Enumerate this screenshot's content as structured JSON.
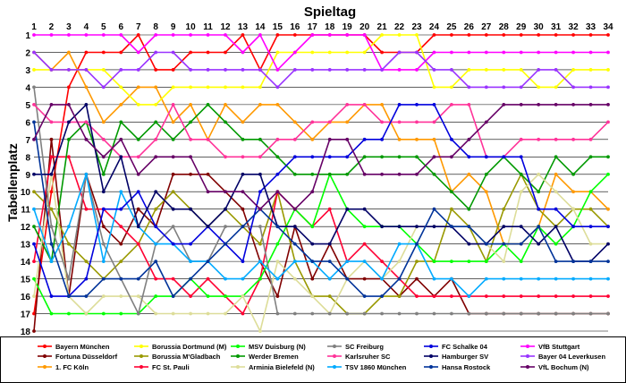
{
  "chart_data": {
    "type": "line",
    "title": "Spieltag",
    "ylabel": "Tabellenplatz",
    "x": [
      1,
      2,
      3,
      4,
      5,
      6,
      7,
      8,
      9,
      10,
      11,
      12,
      13,
      14,
      15,
      16,
      17,
      18,
      19,
      20,
      21,
      22,
      23,
      24,
      25,
      26,
      27,
      28,
      29,
      30,
      31,
      32,
      33,
      34
    ],
    "y_ticks": [
      1,
      2,
      3,
      4,
      5,
      6,
      7,
      8,
      9,
      10,
      11,
      12,
      13,
      14,
      15,
      16,
      17,
      18
    ],
    "ylim": [
      1,
      18
    ],
    "y_inverted": true,
    "grid": true,
    "legend_position": "bottom",
    "series": [
      {
        "name": "Bayern München",
        "color": "#ff0000",
        "values": [
          17,
          10,
          4,
          2,
          2,
          2,
          1,
          3,
          3,
          2,
          2,
          2,
          1,
          3,
          1,
          1,
          1,
          1,
          1,
          1,
          2,
          2,
          2,
          1,
          1,
          1,
          1,
          1,
          1,
          1,
          1,
          1,
          1,
          1
        ]
      },
      {
        "name": "Fortuna Düsseldorf",
        "color": "#800000",
        "values": [
          18,
          7,
          16,
          9,
          12,
          13,
          11,
          12,
          9,
          9,
          9,
          10,
          11,
          14,
          16,
          12,
          15,
          13,
          15,
          15,
          15,
          16,
          15,
          16,
          15,
          17,
          17,
          17,
          17,
          17,
          17,
          17,
          17,
          17
        ]
      },
      {
        "name": "1. FC Köln",
        "color": "#ff9900",
        "values": [
          2,
          3,
          2,
          4,
          6,
          5,
          4,
          4,
          6,
          5,
          7,
          5,
          6,
          5,
          5,
          6,
          7,
          6,
          6,
          5,
          5,
          7,
          7,
          7,
          10,
          9,
          10,
          13,
          13,
          12,
          9,
          10,
          10,
          11
        ]
      },
      {
        "name": "Borussia Dortmund (M)",
        "color": "#ffff00",
        "values": [
          3,
          3,
          3,
          3,
          3,
          4,
          5,
          5,
          4,
          4,
          4,
          4,
          4,
          4,
          2,
          2,
          2,
          2,
          2,
          2,
          1,
          1,
          1,
          4,
          4,
          3,
          3,
          3,
          3,
          4,
          4,
          3,
          3,
          3
        ]
      },
      {
        "name": "Borussia M'Gladbach",
        "color": "#999900",
        "values": [
          10,
          11,
          13,
          14,
          15,
          14,
          13,
          11,
          10,
          11,
          12,
          11,
          12,
          13,
          10,
          14,
          16,
          16,
          17,
          17,
          16,
          16,
          14,
          14,
          11,
          12,
          14,
          11,
          9,
          11,
          12,
          11,
          11,
          12
        ]
      },
      {
        "name": "FC St. Pauli",
        "color": "#ff0033",
        "values": [
          14,
          8,
          8,
          11,
          11,
          12,
          13,
          15,
          15,
          16,
          15,
          16,
          17,
          15,
          10,
          11,
          12,
          11,
          14,
          13,
          14,
          15,
          16,
          16,
          16,
          16,
          16,
          16,
          16,
          16,
          16,
          16,
          16,
          16
        ]
      },
      {
        "name": "MSV Duisburg (N)",
        "color": "#00ff00",
        "values": [
          15,
          17,
          17,
          17,
          17,
          17,
          17,
          16,
          16,
          15,
          16,
          16,
          16,
          15,
          13,
          11,
          12,
          9,
          11,
          12,
          12,
          12,
          13,
          14,
          14,
          14,
          14,
          13,
          14,
          12,
          13,
          12,
          10,
          9
        ]
      },
      {
        "name": "Werder Bremen",
        "color": "#009900",
        "values": [
          12,
          14,
          7,
          6,
          9,
          6,
          7,
          6,
          7,
          6,
          5,
          6,
          7,
          7,
          8,
          9,
          9,
          9,
          9,
          8,
          8,
          8,
          8,
          9,
          10,
          11,
          9,
          8,
          9,
          10,
          8,
          9,
          8,
          8
        ]
      },
      {
        "name": "Arminia Bielefeld (N)",
        "color": "#dddd99",
        "values": [
          16,
          9,
          16,
          17,
          16,
          16,
          16,
          17,
          17,
          17,
          17,
          17,
          16,
          18,
          14,
          15,
          16,
          17,
          15,
          14,
          15,
          14,
          12,
          12,
          12,
          12,
          13,
          14,
          10,
          9,
          10,
          11,
          13,
          13
        ]
      },
      {
        "name": "SC Freiburg",
        "color": "#808080",
        "values": [
          4,
          12,
          15,
          9,
          13,
          15,
          17,
          13,
          12,
          14,
          14,
          12,
          12,
          12,
          17,
          17,
          17,
          17,
          17,
          17,
          17,
          17,
          17,
          17,
          17,
          17,
          17,
          17,
          17,
          17,
          17,
          17,
          17,
          17
        ]
      },
      {
        "name": "Karlsruher SC",
        "color": "#ff3399",
        "values": [
          5,
          6,
          6,
          6,
          7,
          8,
          8,
          7,
          5,
          7,
          7,
          8,
          8,
          8,
          7,
          7,
          6,
          6,
          5,
          5,
          6,
          6,
          6,
          6,
          5,
          5,
          8,
          8,
          7,
          7,
          7,
          7,
          7,
          6
        ]
      },
      {
        "name": "TSV 1860 München",
        "color": "#00aaff",
        "values": [
          11,
          14,
          12,
          9,
          14,
          10,
          12,
          13,
          13,
          14,
          14,
          15,
          15,
          14,
          15,
          14,
          14,
          15,
          14,
          14,
          15,
          13,
          13,
          15,
          15,
          16,
          15,
          15,
          15,
          15,
          15,
          15,
          15,
          15
        ]
      },
      {
        "name": "FC Schalke 04",
        "color": "#0000dd",
        "values": [
          13,
          16,
          16,
          15,
          11,
          11,
          10,
          12,
          13,
          13,
          12,
          13,
          14,
          10,
          9,
          8,
          8,
          8,
          8,
          7,
          7,
          5,
          5,
          5,
          7,
          8,
          8,
          8,
          8,
          11,
          11,
          12,
          12,
          12
        ]
      },
      {
        "name": "Hamburger SV",
        "color": "#000066",
        "values": [
          9,
          9,
          6,
          5,
          10,
          8,
          12,
          10,
          11,
          11,
          12,
          11,
          9,
          9,
          12,
          12,
          13,
          13,
          11,
          11,
          12,
          12,
          12,
          12,
          12,
          13,
          13,
          12,
          12,
          13,
          12,
          14,
          14,
          13
        ]
      },
      {
        "name": "Hansa Rostock",
        "color": "#003399",
        "values": [
          6,
          13,
          16,
          16,
          15,
          15,
          15,
          14,
          16,
          15,
          14,
          13,
          12,
          11,
          12,
          13,
          14,
          14,
          15,
          16,
          16,
          15,
          13,
          11,
          12,
          12,
          13,
          13,
          13,
          12,
          14,
          14,
          14,
          14
        ]
      },
      {
        "name": "VfB Stuttgart",
        "color": "#ff00ff",
        "values": [
          1,
          1,
          1,
          1,
          1,
          1,
          2,
          1,
          1,
          1,
          1,
          1,
          2,
          1,
          3,
          2,
          1,
          1,
          1,
          1,
          3,
          3,
          3,
          2,
          2,
          2,
          2,
          2,
          2,
          2,
          2,
          2,
          2,
          2
        ]
      },
      {
        "name": "Bayer 04 Leverkusen",
        "color": "#9933ff",
        "values": [
          2,
          3,
          3,
          3,
          4,
          3,
          3,
          2,
          2,
          3,
          3,
          3,
          3,
          3,
          4,
          3,
          3,
          3,
          3,
          3,
          3,
          2,
          2,
          3,
          3,
          4,
          4,
          4,
          4,
          3,
          3,
          4,
          4,
          4
        ]
      },
      {
        "name": "VfL Bochum (N)",
        "color": "#660066",
        "values": [
          7,
          5,
          5,
          7,
          8,
          7,
          9,
          8,
          8,
          8,
          10,
          10,
          10,
          11,
          10,
          11,
          10,
          7,
          7,
          9,
          9,
          9,
          9,
          8,
          8,
          7,
          6,
          5,
          5,
          5,
          5,
          5,
          5,
          5
        ]
      }
    ]
  }
}
